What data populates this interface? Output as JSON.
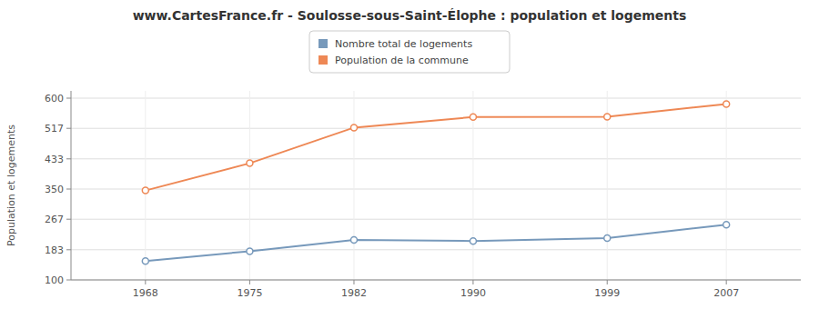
{
  "chart_data": {
    "type": "line",
    "title": "www.CartesFrance.fr - Soulosse-sous-Saint-Élophe : population et logements",
    "ylabel": "Population et logements",
    "x": [
      1968,
      1975,
      1982,
      1990,
      1999,
      2007
    ],
    "series": [
      {
        "name": "Nombre total de logements",
        "color": "#7799bb",
        "values": [
          152,
          179,
          210,
          207,
          215,
          252
        ]
      },
      {
        "name": "Population de la commune",
        "color": "#ee8855",
        "values": [
          346,
          421,
          519,
          548,
          549,
          584
        ]
      }
    ],
    "xlim": [
      1963,
      2012
    ],
    "xticks": [
      1968,
      1975,
      1982,
      1990,
      1999,
      2007
    ],
    "ylim": [
      100,
      620
    ],
    "yticks": [
      100,
      183,
      267,
      350,
      433,
      517,
      600
    ],
    "grid": true,
    "legend": "top",
    "marker": "circle"
  }
}
